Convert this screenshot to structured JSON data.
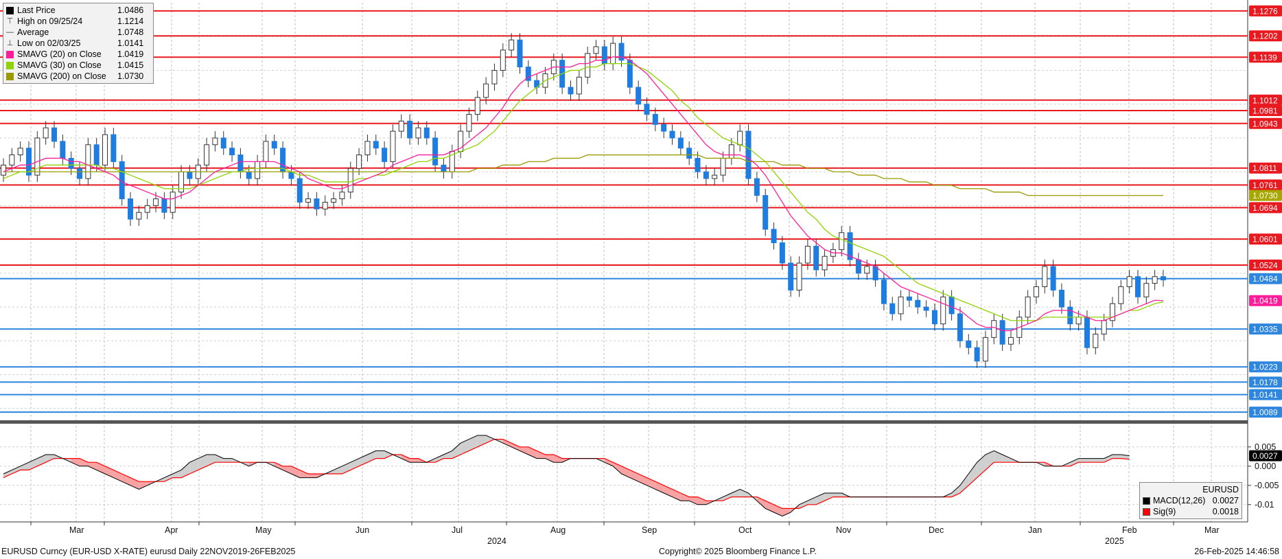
{
  "legend": {
    "items": [
      {
        "glyph": "square",
        "label": "Last Price",
        "value": "1.0486",
        "color": "#000000"
      },
      {
        "glyph": "high",
        "label": "High on 09/25/24",
        "value": "1.1214"
      },
      {
        "glyph": "avg",
        "label": "Average",
        "value": "1.0748"
      },
      {
        "glyph": "low",
        "label": "Low on 02/03/25",
        "value": "1.0141"
      },
      {
        "glyph": "square",
        "label": "SMAVG (20)  on Close",
        "value": "1.0419",
        "color": "#ff1e9a"
      },
      {
        "glyph": "square",
        "label": "SMAVG (30)  on Close",
        "value": "1.0415",
        "color": "#8fd400"
      },
      {
        "glyph": "square",
        "label": "SMAVG (200)  on Close",
        "value": "1.0730",
        "color": "#9a9a00"
      }
    ]
  },
  "macd_legend": {
    "title": "EURUSD",
    "items": [
      {
        "label": "MACD(12,26)",
        "value": "0.0027",
        "color": "#000000"
      },
      {
        "label": "Sig(9)",
        "value": "0.0018",
        "color": "#ff0000"
      }
    ]
  },
  "footer": {
    "left": "EURUSD Curncy (EUR-USD X-RATE) eurusd  Daily 22NOV2019-26FEB2025",
    "center": "Copyright© 2025 Bloomberg Finance L.P.",
    "right": "26-Feb-2025 14:46:58"
  },
  "chart_data": {
    "type": "candlestick",
    "price_ylim": [
      1.0065,
      1.13
    ],
    "macd_ylim": [
      -0.0145,
      0.0105
    ],
    "x_months": [
      "Mar",
      "Apr",
      "May",
      "Jun",
      "Jul",
      "Aug",
      "Sep",
      "Oct",
      "Nov",
      "Dec",
      "Jan",
      "Feb",
      "Mar"
    ],
    "year_labels": [
      {
        "label": "2024",
        "after_month": "Jul"
      },
      {
        "label": "2025",
        "after_month": "Feb"
      }
    ],
    "macd_ticks": [
      0.005,
      0.0,
      -0.005,
      -0.01
    ],
    "macd_tick_labels": [
      "0.005",
      "0.000",
      "-0.005",
      "-0.01"
    ],
    "last_price_line": 1.0484,
    "resistance_lines": [
      {
        "value": 1.1276,
        "label": "1.1276",
        "color": "#e8191f"
      },
      {
        "value": 1.1202,
        "label": "1.1202",
        "color": "#e8191f"
      },
      {
        "value": 1.1139,
        "label": "1.1139",
        "color": "#e8191f"
      },
      {
        "value": 1.1012,
        "label": "1.1012",
        "color": "#e8191f"
      },
      {
        "value": 1.0981,
        "label": "1.0981",
        "color": "#e8191f"
      },
      {
        "value": 1.0943,
        "label": "1.0943",
        "color": "#e8191f"
      },
      {
        "value": 1.0811,
        "label": "1.0811",
        "color": "#e8191f"
      },
      {
        "value": 1.0761,
        "label": "1.0761",
        "color": "#e8191f"
      },
      {
        "value": 1.0694,
        "label": "1.0694",
        "color": "#e8191f"
      },
      {
        "value": 1.0601,
        "label": "1.0601",
        "color": "#e8191f"
      },
      {
        "value": 1.0524,
        "label": "1.0524",
        "color": "#e8191f"
      }
    ],
    "support_lines": [
      {
        "value": 1.0484,
        "label": "1.0484",
        "color": "#2e86de"
      },
      {
        "value": 1.0335,
        "label": "1.0335",
        "color": "#2e86de"
      },
      {
        "value": 1.0223,
        "label": "1.0223",
        "color": "#2e86de"
      },
      {
        "value": 1.0178,
        "label": "1.0178",
        "color": "#2e86de"
      },
      {
        "value": 1.0141,
        "label": "1.0141",
        "color": "#2e86de"
      },
      {
        "value": 1.0089,
        "label": "1.0089",
        "color": "#2e86de"
      }
    ],
    "tags": [
      {
        "value": 1.0419,
        "label": "1.0419",
        "color": "#ff1e9a"
      },
      {
        "value": 1.073,
        "label": "1.0730",
        "color": "#a7a700"
      }
    ],
    "close_series": [
      1.082,
      1.085,
      1.087,
      1.079,
      1.09,
      1.093,
      1.089,
      1.084,
      1.081,
      1.078,
      1.088,
      1.082,
      1.091,
      1.083,
      1.072,
      1.066,
      1.068,
      1.07,
      1.072,
      1.068,
      1.074,
      1.08,
      1.078,
      1.082,
      1.088,
      1.09,
      1.087,
      1.085,
      1.08,
      1.078,
      1.083,
      1.089,
      1.087,
      1.08,
      1.078,
      1.071,
      1.072,
      1.069,
      1.071,
      1.072,
      1.074,
      1.081,
      1.085,
      1.089,
      1.087,
      1.083,
      1.092,
      1.095,
      1.09,
      1.093,
      1.09,
      1.082,
      1.08,
      1.086,
      1.092,
      1.097,
      1.102,
      1.106,
      1.11,
      1.116,
      1.119,
      1.111,
      1.107,
      1.105,
      1.109,
      1.113,
      1.105,
      1.103,
      1.108,
      1.115,
      1.117,
      1.112,
      1.118,
      1.113,
      1.105,
      1.1,
      1.097,
      1.094,
      1.092,
      1.09,
      1.087,
      1.084,
      1.08,
      1.078,
      1.079,
      1.084,
      1.088,
      1.092,
      1.078,
      1.073,
      1.063,
      1.059,
      1.053,
      1.045,
      1.053,
      1.058,
      1.051,
      1.055,
      1.057,
      1.062,
      1.054,
      1.05,
      1.052,
      1.048,
      1.041,
      1.038,
      1.043,
      1.042,
      1.04,
      1.039,
      1.035,
      1.043,
      1.038,
      1.03,
      1.028,
      1.024,
      1.031,
      1.036,
      1.029,
      1.031,
      1.037,
      1.043,
      1.046,
      1.052,
      1.045,
      1.04,
      1.035,
      1.037,
      1.028,
      1.032,
      1.036,
      1.041,
      1.046,
      1.049,
      1.043,
      1.047,
      1.049,
      1.048
    ],
    "sma20": [
      1.08,
      1.081,
      1.082,
      1.082,
      1.083,
      1.084,
      1.084,
      1.084,
      1.083,
      1.083,
      1.082,
      1.081,
      1.08,
      1.079,
      1.077,
      1.076,
      1.075,
      1.074,
      1.073,
      1.072,
      1.072,
      1.073,
      1.074,
      1.076,
      1.078,
      1.08,
      1.081,
      1.082,
      1.083,
      1.083,
      1.083,
      1.083,
      1.083,
      1.082,
      1.081,
      1.08,
      1.078,
      1.077,
      1.076,
      1.075,
      1.075,
      1.076,
      1.077,
      1.078,
      1.079,
      1.08,
      1.082,
      1.083,
      1.084,
      1.085,
      1.085,
      1.085,
      1.085,
      1.086,
      1.087,
      1.089,
      1.091,
      1.093,
      1.096,
      1.099,
      1.103,
      1.106,
      1.108,
      1.109,
      1.11,
      1.111,
      1.111,
      1.111,
      1.112,
      1.112,
      1.113,
      1.113,
      1.114,
      1.114,
      1.113,
      1.111,
      1.109,
      1.106,
      1.103,
      1.1,
      1.097,
      1.094,
      1.091,
      1.088,
      1.086,
      1.085,
      1.085,
      1.085,
      1.084,
      1.082,
      1.079,
      1.075,
      1.071,
      1.067,
      1.064,
      1.061,
      1.059,
      1.057,
      1.056,
      1.056,
      1.055,
      1.054,
      1.053,
      1.052,
      1.05,
      1.048,
      1.046,
      1.045,
      1.044,
      1.043,
      1.042,
      1.041,
      1.04,
      1.039,
      1.037,
      1.035,
      1.034,
      1.034,
      1.033,
      1.033,
      1.034,
      1.035,
      1.036,
      1.038,
      1.039,
      1.039,
      1.039,
      1.038,
      1.037,
      1.036,
      1.036,
      1.037,
      1.038,
      1.039,
      1.04,
      1.041,
      1.042,
      1.0419
    ],
    "sma30": [
      1.078,
      1.079,
      1.08,
      1.08,
      1.081,
      1.082,
      1.082,
      1.082,
      1.082,
      1.082,
      1.082,
      1.082,
      1.081,
      1.081,
      1.08,
      1.079,
      1.078,
      1.077,
      1.076,
      1.075,
      1.075,
      1.075,
      1.075,
      1.076,
      1.077,
      1.078,
      1.079,
      1.08,
      1.08,
      1.081,
      1.081,
      1.081,
      1.081,
      1.081,
      1.08,
      1.079,
      1.079,
      1.078,
      1.077,
      1.077,
      1.077,
      1.077,
      1.078,
      1.078,
      1.079,
      1.079,
      1.08,
      1.081,
      1.082,
      1.083,
      1.083,
      1.084,
      1.084,
      1.085,
      1.086,
      1.087,
      1.088,
      1.09,
      1.092,
      1.095,
      1.098,
      1.101,
      1.103,
      1.105,
      1.107,
      1.108,
      1.109,
      1.11,
      1.11,
      1.111,
      1.111,
      1.112,
      1.112,
      1.112,
      1.112,
      1.111,
      1.11,
      1.108,
      1.106,
      1.104,
      1.101,
      1.099,
      1.096,
      1.094,
      1.092,
      1.09,
      1.089,
      1.088,
      1.087,
      1.085,
      1.083,
      1.08,
      1.077,
      1.074,
      1.071,
      1.068,
      1.066,
      1.063,
      1.061,
      1.06,
      1.059,
      1.058,
      1.057,
      1.056,
      1.055,
      1.053,
      1.051,
      1.049,
      1.047,
      1.046,
      1.045,
      1.044,
      1.043,
      1.042,
      1.041,
      1.04,
      1.039,
      1.038,
      1.037,
      1.036,
      1.036,
      1.036,
      1.036,
      1.037,
      1.037,
      1.037,
      1.037,
      1.037,
      1.037,
      1.037,
      1.037,
      1.037,
      1.038,
      1.039,
      1.039,
      1.04,
      1.041,
      1.0415
    ],
    "sma200": [
      1.08,
      1.08,
      1.08,
      1.08,
      1.08,
      1.08,
      1.08,
      1.08,
      1.08,
      1.08,
      1.08,
      1.08,
      1.08,
      1.08,
      1.08,
      1.08,
      1.08,
      1.08,
      1.08,
      1.08,
      1.08,
      1.08,
      1.08,
      1.08,
      1.08,
      1.08,
      1.08,
      1.08,
      1.08,
      1.08,
      1.08,
      1.08,
      1.08,
      1.08,
      1.08,
      1.08,
      1.08,
      1.08,
      1.08,
      1.08,
      1.08,
      1.08,
      1.08,
      1.08,
      1.08,
      1.08,
      1.08,
      1.08,
      1.08,
      1.08,
      1.08,
      1.08,
      1.08,
      1.08,
      1.08,
      1.08,
      1.081,
      1.081,
      1.081,
      1.082,
      1.082,
      1.082,
      1.083,
      1.083,
      1.083,
      1.084,
      1.084,
      1.084,
      1.084,
      1.085,
      1.085,
      1.085,
      1.085,
      1.085,
      1.085,
      1.085,
      1.085,
      1.085,
      1.085,
      1.085,
      1.085,
      1.085,
      1.085,
      1.084,
      1.084,
      1.084,
      1.084,
      1.084,
      1.083,
      1.083,
      1.083,
      1.083,
      1.082,
      1.082,
      1.082,
      1.081,
      1.081,
      1.081,
      1.08,
      1.08,
      1.08,
      1.079,
      1.079,
      1.079,
      1.078,
      1.078,
      1.078,
      1.077,
      1.077,
      1.077,
      1.076,
      1.076,
      1.076,
      1.075,
      1.075,
      1.075,
      1.075,
      1.074,
      1.074,
      1.074,
      1.074,
      1.073,
      1.073,
      1.073,
      1.073,
      1.073,
      1.073,
      1.073,
      1.073,
      1.073,
      1.073,
      1.073,
      1.073,
      1.073,
      1.073,
      1.073,
      1.073,
      1.073
    ],
    "macd": [
      -0.002,
      -0.001,
      0.0,
      0.001,
      0.002,
      0.003,
      0.003,
      0.002,
      0.001,
      0.0,
      0.0,
      -0.001,
      -0.002,
      -0.003,
      -0.004,
      -0.005,
      -0.006,
      -0.005,
      -0.004,
      -0.003,
      -0.002,
      -0.001,
      0.001,
      0.002,
      0.003,
      0.003,
      0.002,
      0.002,
      0.001,
      0.0,
      0.001,
      0.001,
      0.0,
      -0.001,
      -0.002,
      -0.003,
      -0.003,
      -0.003,
      -0.002,
      -0.001,
      0.0,
      0.001,
      0.002,
      0.003,
      0.004,
      0.004,
      0.003,
      0.002,
      0.001,
      0.001,
      0.001,
      0.002,
      0.003,
      0.004,
      0.006,
      0.007,
      0.008,
      0.008,
      0.007,
      0.006,
      0.005,
      0.004,
      0.003,
      0.002,
      0.002,
      0.001,
      0.001,
      0.002,
      0.002,
      0.002,
      0.002,
      0.001,
      0.0,
      -0.002,
      -0.003,
      -0.004,
      -0.005,
      -0.006,
      -0.007,
      -0.008,
      -0.009,
      -0.009,
      -0.01,
      -0.01,
      -0.009,
      -0.008,
      -0.007,
      -0.006,
      -0.007,
      -0.009,
      -0.011,
      -0.012,
      -0.013,
      -0.012,
      -0.01,
      -0.009,
      -0.008,
      -0.007,
      -0.007,
      -0.007,
      -0.008,
      -0.008,
      -0.008,
      -0.008,
      -0.008,
      -0.008,
      -0.008,
      -0.008,
      -0.008,
      -0.008,
      -0.008,
      -0.008,
      -0.007,
      -0.005,
      -0.002,
      0.001,
      0.003,
      0.004,
      0.003,
      0.002,
      0.001,
      0.001,
      0.001,
      0.0,
      0.0,
      0.0,
      0.001,
      0.002,
      0.002,
      0.002,
      0.002,
      0.003,
      0.003,
      0.0027
    ],
    "signal": [
      -0.003,
      -0.002,
      -0.001,
      -0.001,
      0.0,
      0.001,
      0.002,
      0.002,
      0.002,
      0.002,
      0.001,
      0.001,
      0.0,
      -0.001,
      -0.002,
      -0.003,
      -0.004,
      -0.004,
      -0.004,
      -0.004,
      -0.003,
      -0.003,
      -0.002,
      -0.001,
      0.0,
      0.001,
      0.001,
      0.001,
      0.001,
      0.001,
      0.001,
      0.001,
      0.001,
      0.0,
      0.0,
      -0.001,
      -0.002,
      -0.002,
      -0.002,
      -0.002,
      -0.002,
      -0.001,
      0.0,
      0.001,
      0.002,
      0.002,
      0.003,
      0.003,
      0.002,
      0.002,
      0.001,
      0.001,
      0.002,
      0.002,
      0.003,
      0.004,
      0.005,
      0.006,
      0.007,
      0.007,
      0.006,
      0.005,
      0.005,
      0.004,
      0.003,
      0.003,
      0.002,
      0.002,
      0.002,
      0.002,
      0.002,
      0.002,
      0.001,
      0.0,
      -0.001,
      -0.002,
      -0.003,
      -0.004,
      -0.005,
      -0.006,
      -0.007,
      -0.008,
      -0.008,
      -0.009,
      -0.009,
      -0.009,
      -0.008,
      -0.008,
      -0.008,
      -0.008,
      -0.009,
      -0.01,
      -0.011,
      -0.011,
      -0.011,
      -0.01,
      -0.01,
      -0.009,
      -0.008,
      -0.008,
      -0.008,
      -0.008,
      -0.008,
      -0.008,
      -0.008,
      -0.008,
      -0.008,
      -0.008,
      -0.008,
      -0.008,
      -0.008,
      -0.008,
      -0.008,
      -0.007,
      -0.005,
      -0.003,
      -0.001,
      0.001,
      0.001,
      0.001,
      0.001,
      0.001,
      0.001,
      0.001,
      0.0,
      0.0,
      0.0,
      0.001,
      0.001,
      0.001,
      0.001,
      0.002,
      0.002,
      0.0018
    ]
  }
}
